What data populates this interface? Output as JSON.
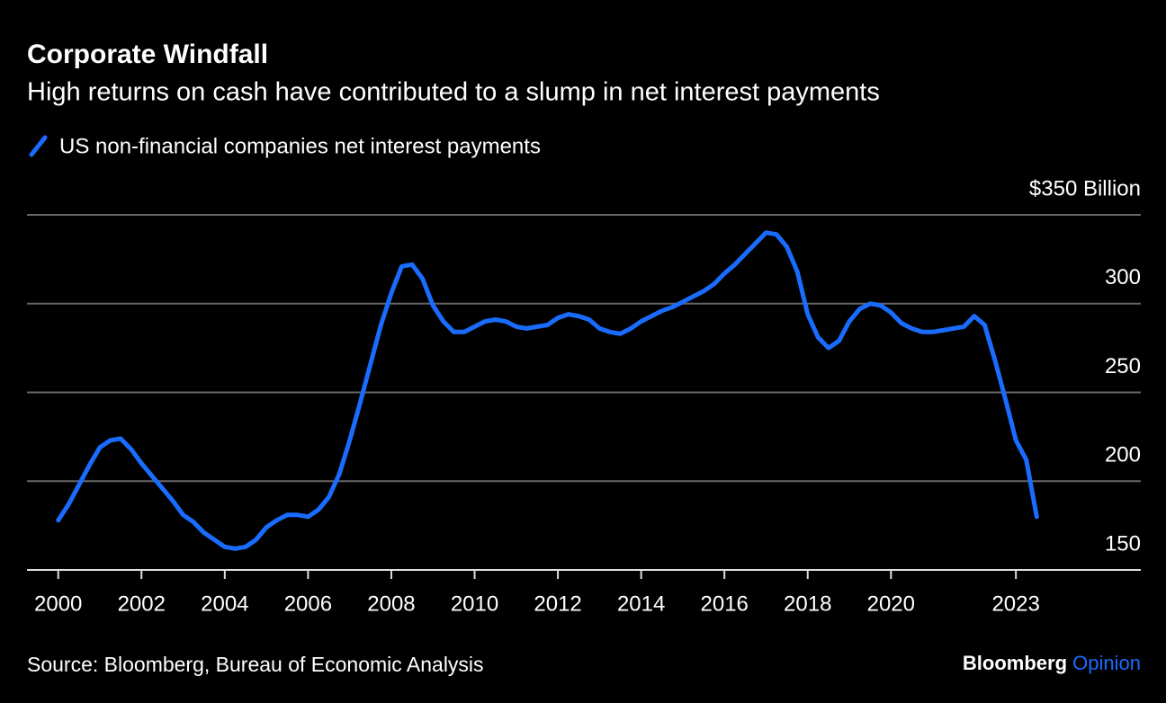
{
  "chart_data": {
    "type": "line",
    "title": "Corporate Windfall",
    "subtitle": "High returns on cash have contributed to a slump in net interest payments",
    "source": "Source: Bloomberg, Bureau of Economic Analysis",
    "brand": "Bloomberg",
    "brand_suffix": "Opinion",
    "x": [
      2000,
      2000.25,
      2000.5,
      2000.75,
      2001,
      2001.25,
      2001.5,
      2001.75,
      2002,
      2002.25,
      2002.5,
      2002.75,
      2003,
      2003.25,
      2003.5,
      2003.75,
      2004,
      2004.25,
      2004.5,
      2004.75,
      2005,
      2005.25,
      2005.5,
      2005.75,
      2006,
      2006.25,
      2006.5,
      2006.75,
      2007,
      2007.25,
      2007.5,
      2007.75,
      2008,
      2008.25,
      2008.5,
      2008.75,
      2009,
      2009.25,
      2009.5,
      2009.75,
      2010,
      2010.25,
      2010.5,
      2010.75,
      2011,
      2011.25,
      2011.5,
      2011.75,
      2012,
      2012.25,
      2012.5,
      2012.75,
      2013,
      2013.25,
      2013.5,
      2013.75,
      2014,
      2014.25,
      2014.5,
      2014.75,
      2015,
      2015.25,
      2015.5,
      2015.75,
      2016,
      2016.25,
      2016.5,
      2016.75,
      2017,
      2017.25,
      2017.5,
      2017.75,
      2018,
      2018.25,
      2018.5,
      2018.75,
      2019,
      2019.25,
      2019.5,
      2019.75,
      2020,
      2020.25,
      2020.5,
      2020.75,
      2021,
      2021.25,
      2021.5,
      2021.75,
      2022,
      2022.25,
      2022.5,
      2022.75,
      2023,
      2023.25,
      2023.5
    ],
    "series": [
      {
        "name": "US non-financial companies net interest payments",
        "color": "#1a6cff",
        "values": [
          178,
          187,
          198,
          209,
          219,
          223,
          224,
          218,
          210,
          203,
          196,
          189,
          181,
          177,
          171,
          167,
          163,
          162,
          163,
          167,
          174,
          178,
          181,
          181,
          180,
          184,
          191,
          204,
          223,
          244,
          266,
          288,
          306,
          321,
          322,
          314,
          299,
          290,
          284,
          284,
          287,
          290,
          291,
          290,
          287,
          286,
          287,
          288,
          292,
          294,
          293,
          291,
          286,
          284,
          283,
          286,
          290,
          293,
          296,
          298,
          301,
          304,
          307,
          311,
          317,
          322,
          328,
          334,
          340,
          339,
          332,
          318,
          294,
          281,
          275,
          279,
          290,
          297,
          300,
          299,
          295,
          289,
          286,
          284,
          284,
          285,
          286,
          287,
          293,
          288,
          268,
          246,
          223,
          212,
          180
        ]
      }
    ],
    "xlim": [
      1999.25,
      2026
    ],
    "xticks": [
      2000,
      2002,
      2004,
      2006,
      2008,
      2010,
      2012,
      2014,
      2016,
      2018,
      2020,
      2023
    ],
    "ylim": [
      150,
      350
    ],
    "yticks": [
      150,
      200,
      250,
      300,
      {
        "value": 350,
        "label": "$350 Billion"
      }
    ],
    "grid": true
  }
}
